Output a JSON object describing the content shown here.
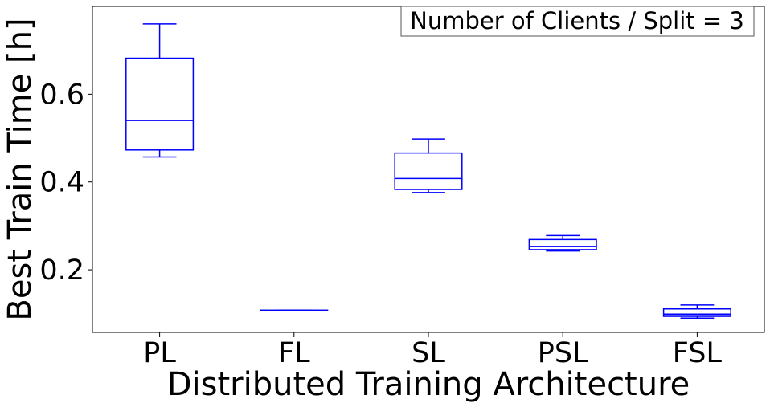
{
  "chart_data": {
    "type": "box",
    "xlabel": "Distributed Training Architecture",
    "ylabel": "Best Train Time [h]",
    "annotation": "Number of Clients / Split = 3",
    "categories": [
      "PL",
      "FL",
      "SL",
      "PSL",
      "FSL"
    ],
    "boxes": [
      {
        "whisker_low": 0.457,
        "q1": 0.473,
        "median": 0.54,
        "q3": 0.682,
        "whisker_high": 0.76
      },
      {
        "whisker_low": 0.108,
        "q1": 0.108,
        "median": 0.108,
        "q3": 0.108,
        "whisker_high": 0.108
      },
      {
        "whisker_low": 0.376,
        "q1": 0.383,
        "median": 0.408,
        "q3": 0.466,
        "whisker_high": 0.498
      },
      {
        "whisker_low": 0.243,
        "q1": 0.246,
        "median": 0.253,
        "q3": 0.269,
        "whisker_high": 0.278
      },
      {
        "whisker_low": 0.09,
        "q1": 0.094,
        "median": 0.099,
        "q3": 0.111,
        "whisker_high": 0.12
      }
    ],
    "ylim": [
      0.0575,
      0.8
    ],
    "yticks": [
      0.2,
      0.4,
      0.6
    ],
    "ytick_labels": [
      "0.2",
      "0.4",
      "0.6"
    ],
    "color": "#0000ff",
    "grid": false,
    "legend": false
  }
}
